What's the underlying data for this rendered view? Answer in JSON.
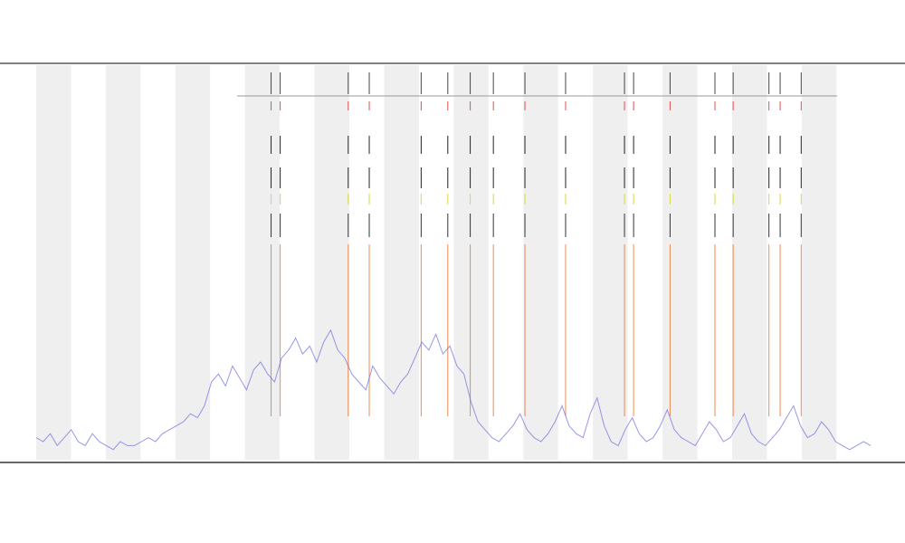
{
  "chart_data": {
    "type": "line",
    "series": [
      {
        "color": "#6b6be0",
        "values": [
          6,
          5,
          7,
          4,
          6,
          8,
          5,
          4,
          7,
          5,
          4,
          3,
          5,
          4,
          4,
          5,
          6,
          5,
          7,
          8,
          9,
          10,
          12,
          11,
          14,
          20,
          22,
          19,
          24,
          21,
          18,
          23,
          25,
          22,
          20,
          26,
          28,
          31,
          27,
          29,
          25,
          30,
          33,
          28,
          26,
          22,
          20,
          18,
          24,
          21,
          19,
          17,
          20,
          22,
          26,
          30,
          28,
          32,
          27,
          29,
          24,
          22,
          15,
          10,
          8,
          6,
          5,
          7,
          9,
          12,
          8,
          6,
          5,
          7,
          10,
          14,
          9,
          7,
          6,
          12,
          16,
          9,
          5,
          4,
          8,
          11,
          7,
          5,
          6,
          9,
          13,
          8,
          6,
          5,
          4,
          7,
          10,
          8,
          5,
          6,
          9,
          12,
          7,
          5,
          4,
          6,
          8,
          11,
          14,
          9,
          6,
          7,
          10,
          8,
          5,
          4,
          3,
          4,
          5,
          4
        ]
      }
    ],
    "events": {
      "color": "#e8702a",
      "x": [
        33.5,
        34.8,
        44.5,
        47.5,
        54.9,
        58.7,
        61.9,
        65.2,
        69.7,
        75.5,
        83.9,
        85.2,
        90.4,
        96.8,
        99.4,
        104.5,
        106.1,
        109.1
      ]
    },
    "xlim": [
      0,
      119
    ],
    "ylim": [
      0,
      100
    ]
  }
}
